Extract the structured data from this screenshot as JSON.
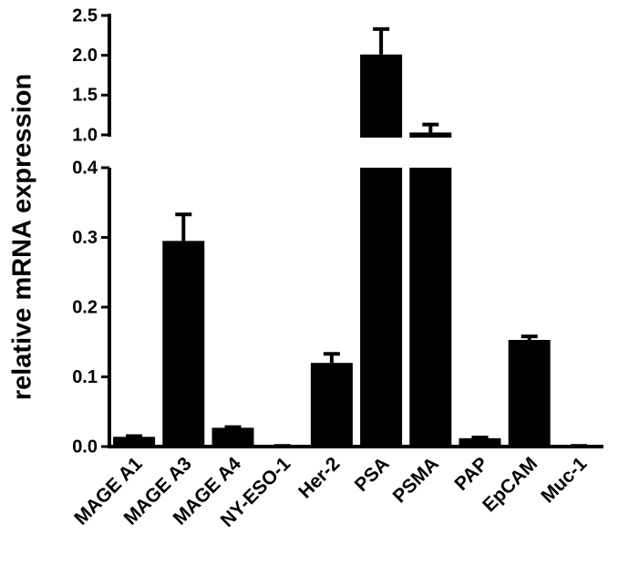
{
  "chart_data": {
    "type": "bar",
    "y_label": "relative mRNA expression",
    "categories": [
      "MAGE A1",
      "MAGE A3",
      "MAGE A4",
      "NY-ESO-1",
      "Her-2",
      "PSA",
      "PSMA",
      "PAP",
      "EpCAM",
      "Muc-1"
    ],
    "values": [
      0.014,
      0.295,
      0.027,
      0.001,
      0.12,
      2.01,
      1.03,
      0.012,
      0.153,
      0.001
    ],
    "errors": [
      0.001,
      0.038,
      0.001,
      0,
      0.013,
      0.32,
      0.1,
      0.001,
      0.005,
      0
    ],
    "color": "#000000",
    "ylim": [
      0,
      2.5
    ],
    "y_break": [
      0.4,
      1.0
    ],
    "yticks": [
      {
        "value": 0,
        "label": "0.0"
      },
      0.1,
      0.2,
      0.3,
      0.4,
      {
        "value": 1,
        "label": "1.0"
      },
      1.5,
      {
        "value": 2,
        "label": "2.0"
      },
      2.5
    ]
  }
}
